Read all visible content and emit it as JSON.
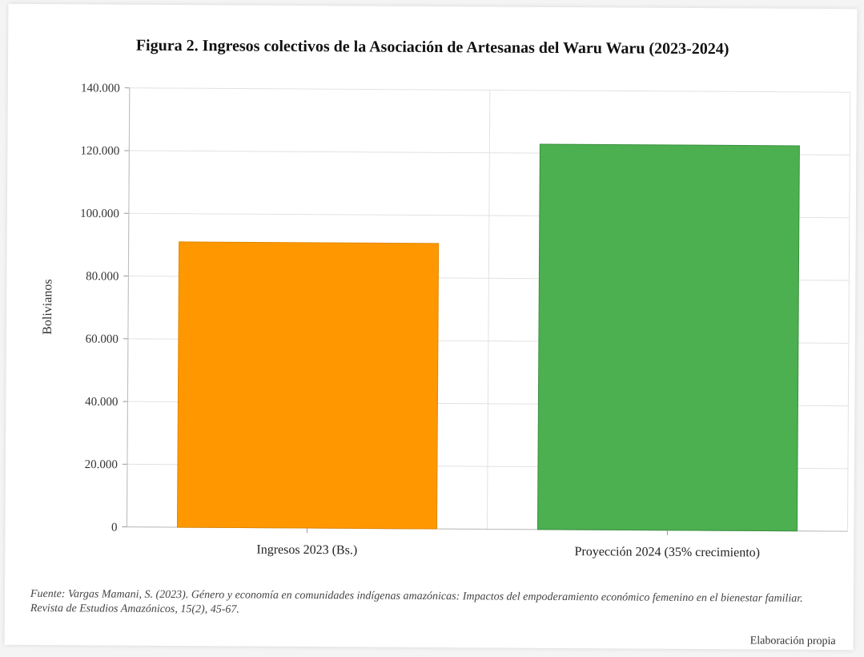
{
  "chart_data": {
    "type": "bar",
    "title": "Figura 2. Ingresos colectivos de la Asociación de Artesanas del Waru Waru (2023-2024)",
    "ylabel": "Bolivianos",
    "xlabel": "",
    "categories": [
      "Ingresos 2023 (Bs.)",
      "Proyección 2024 (35% crecimiento)"
    ],
    "values": [
      91000,
      122850
    ],
    "colors": [
      "#FF9800",
      "#4CAF50"
    ],
    "ylim": [
      0,
      140000
    ],
    "yticks": [
      0,
      20000,
      40000,
      60000,
      80000,
      100000,
      120000,
      140000
    ],
    "ytick_labels": [
      "0",
      "20.000",
      "40.000",
      "60.000",
      "80.000",
      "100.000",
      "120.000",
      "140.000"
    ],
    "grid": true,
    "legend": "none"
  },
  "footer": {
    "source": "Fuente: Vargas Mamani, S. (2023). Género y economía en comunidades indígenas amazónicas: Impactos del empoderamiento económico femenino en el bienestar familiar. Revista de Estudios Amazónicos, 15(2), 45-67.",
    "credit": "Elaboración propia"
  }
}
